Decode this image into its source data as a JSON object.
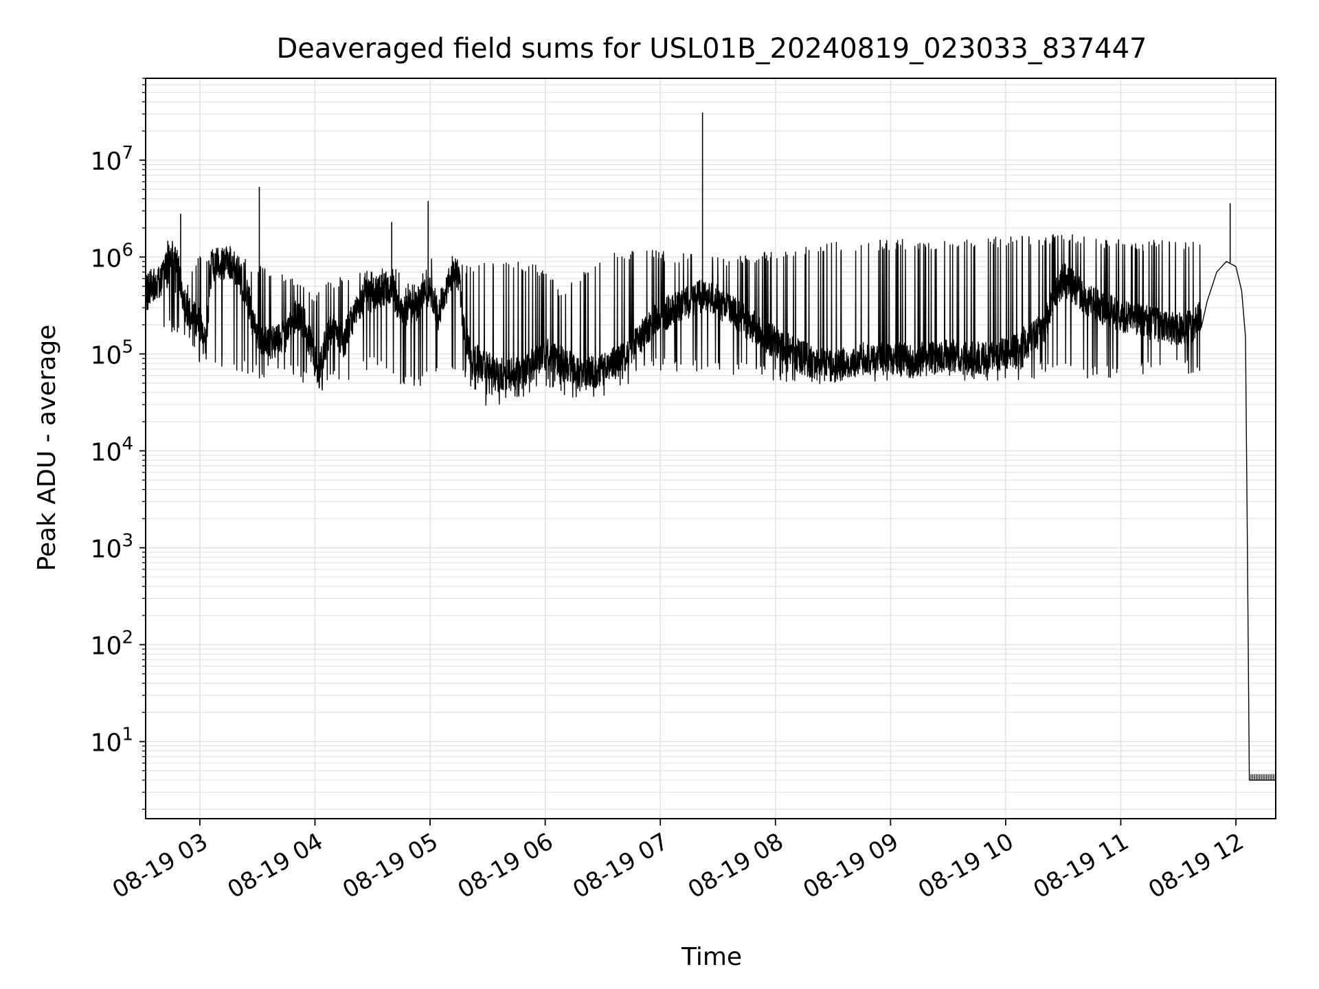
{
  "chart_data": {
    "type": "line",
    "title": "Deaveraged field sums for USL01B_20240819_023033_837447",
    "xlabel": "Time",
    "ylabel": "Peak ADU - average",
    "x_axis_type": "time",
    "y_scale": "log",
    "xlim": [
      "2024-08-19 02:31:45",
      "2024-08-19 12:20:45"
    ],
    "ylim": [
      1.6,
      70000000
    ],
    "x_ticks": [
      {
        "value": "2024-08-19 03:00",
        "label": "08-19 03"
      },
      {
        "value": "2024-08-19 04:00",
        "label": "08-19 04"
      },
      {
        "value": "2024-08-19 05:00",
        "label": "08-19 05"
      },
      {
        "value": "2024-08-19 06:00",
        "label": "08-19 06"
      },
      {
        "value": "2024-08-19 07:00",
        "label": "08-19 07"
      },
      {
        "value": "2024-08-19 08:00",
        "label": "08-19 08"
      },
      {
        "value": "2024-08-19 09:00",
        "label": "08-19 09"
      },
      {
        "value": "2024-08-19 10:00",
        "label": "08-19 10"
      },
      {
        "value": "2024-08-19 11:00",
        "label": "08-19 11"
      },
      {
        "value": "2024-08-19 12:00",
        "label": "08-19 12"
      }
    ],
    "y_ticks": [
      {
        "value": 10,
        "base": "10",
        "exp": "1"
      },
      {
        "value": 100,
        "base": "10",
        "exp": "2"
      },
      {
        "value": 1000,
        "base": "10",
        "exp": "3"
      },
      {
        "value": 10000,
        "base": "10",
        "exp": "4"
      },
      {
        "value": 100000,
        "base": "10",
        "exp": "5"
      },
      {
        "value": 1000000,
        "base": "10",
        "exp": "6"
      },
      {
        "value": 10000000,
        "base": "10",
        "exp": "7"
      }
    ],
    "grid": "major and minor",
    "colors": {
      "line": "#000000",
      "grid": "#e3e3e3",
      "axes": "#000000"
    },
    "series": [
      {
        "style": "dense noisy line",
        "points": [
          [
            "2024-08-19 02:31:45",
            450000
          ],
          [
            "2024-08-19 02:35",
            520000
          ],
          [
            "2024-08-19 02:40",
            560000
          ],
          [
            "2024-08-19 02:44",
            1200000
          ],
          [
            "2024-08-19 02:48",
            900000
          ],
          [
            "2024-08-19 02:52",
            320000
          ],
          [
            "2024-08-19 02:56",
            250000
          ],
          [
            "2024-08-19 03:00",
            200000
          ],
          [
            "2024-08-19 03:03",
            120000
          ],
          [
            "2024-08-19 03:06",
            800000
          ],
          [
            "2024-08-19 03:10",
            850000
          ],
          [
            "2024-08-19 03:15",
            900000
          ],
          [
            "2024-08-19 03:20",
            700000
          ],
          [
            "2024-08-19 03:25",
            400000
          ],
          [
            "2024-08-19 03:28",
            200000
          ],
          [
            "2024-08-19 03:32",
            150000
          ],
          [
            "2024-08-19 03:36",
            130000
          ],
          [
            "2024-08-19 03:40",
            140000
          ],
          [
            "2024-08-19 03:45",
            150000
          ],
          [
            "2024-08-19 03:50",
            250000
          ],
          [
            "2024-08-19 03:55",
            200000
          ],
          [
            "2024-08-19 04:02",
            60000
          ],
          [
            "2024-08-19 04:05",
            120000
          ],
          [
            "2024-08-19 04:10",
            200000
          ],
          [
            "2024-08-19 04:15",
            130000
          ],
          [
            "2024-08-19 04:20",
            250000
          ],
          [
            "2024-08-19 04:25",
            350000
          ],
          [
            "2024-08-19 04:30",
            400000
          ],
          [
            "2024-08-19 04:35",
            450000
          ],
          [
            "2024-08-19 04:40",
            500000
          ],
          [
            "2024-08-19 04:45",
            250000
          ],
          [
            "2024-08-19 04:50",
            300000
          ],
          [
            "2024-08-19 04:55",
            350000
          ],
          [
            "2024-08-19 05:00",
            500000
          ],
          [
            "2024-08-19 05:04",
            250000
          ],
          [
            "2024-08-19 05:08",
            450000
          ],
          [
            "2024-08-19 05:12",
            750000
          ],
          [
            "2024-08-19 05:15",
            650000
          ],
          [
            "2024-08-19 05:18",
            150000
          ],
          [
            "2024-08-19 05:22",
            90000
          ],
          [
            "2024-08-19 05:30",
            70000
          ],
          [
            "2024-08-19 05:40",
            60000
          ],
          [
            "2024-08-19 05:50",
            70000
          ],
          [
            "2024-08-19 06:00",
            100000
          ],
          [
            "2024-08-19 06:10",
            80000
          ],
          [
            "2024-08-19 06:20",
            60000
          ],
          [
            "2024-08-19 06:30",
            70000
          ],
          [
            "2024-08-19 06:40",
            90000
          ],
          [
            "2024-08-19 06:50",
            150000
          ],
          [
            "2024-08-19 07:00",
            250000
          ],
          [
            "2024-08-19 07:10",
            300000
          ],
          [
            "2024-08-19 07:20",
            400000
          ],
          [
            "2024-08-19 07:30",
            350000
          ],
          [
            "2024-08-19 07:40",
            250000
          ],
          [
            "2024-08-19 07:50",
            180000
          ],
          [
            "2024-08-19 08:00",
            130000
          ],
          [
            "2024-08-19 08:10",
            100000
          ],
          [
            "2024-08-19 08:20",
            80000
          ],
          [
            "2024-08-19 08:30",
            75000
          ],
          [
            "2024-08-19 08:40",
            85000
          ],
          [
            "2024-08-19 08:50",
            90000
          ],
          [
            "2024-08-19 09:00",
            90000
          ],
          [
            "2024-08-19 09:10",
            85000
          ],
          [
            "2024-08-19 09:20",
            90000
          ],
          [
            "2024-08-19 09:30",
            95000
          ],
          [
            "2024-08-19 09:40",
            90000
          ],
          [
            "2024-08-19 09:50",
            90000
          ],
          [
            "2024-08-19 10:00",
            100000
          ],
          [
            "2024-08-19 10:10",
            130000
          ],
          [
            "2024-08-19 10:20",
            180000
          ],
          [
            "2024-08-19 10:25",
            400000
          ],
          [
            "2024-08-19 10:30",
            600000
          ],
          [
            "2024-08-19 10:40",
            400000
          ],
          [
            "2024-08-19 10:50",
            300000
          ],
          [
            "2024-08-19 11:00",
            250000
          ],
          [
            "2024-08-19 11:10",
            220000
          ],
          [
            "2024-08-19 11:20",
            200000
          ],
          [
            "2024-08-19 11:30",
            180000
          ],
          [
            "2024-08-19 11:38",
            190000
          ],
          [
            "2024-08-19 11:45",
            350000
          ],
          [
            "2024-08-19 11:50",
            700000
          ],
          [
            "2024-08-19 11:55",
            900000
          ],
          [
            "2024-08-19 12:00",
            800000
          ],
          [
            "2024-08-19 12:03",
            450000
          ],
          [
            "2024-08-19 12:05",
            150000
          ],
          [
            "2024-08-19 12:06",
            1000
          ],
          [
            "2024-08-19 12:07",
            4
          ],
          [
            "2024-08-19 12:20:45",
            4
          ]
        ],
        "upper_envelope": [
          [
            "2024-08-19 02:31:45",
            700000
          ],
          [
            "2024-08-19 02:52",
            400000
          ],
          [
            "2024-08-19 02:57",
            900000
          ],
          [
            "2024-08-19 03:05",
            950000
          ],
          [
            "2024-08-19 03:15",
            1050000
          ],
          [
            "2024-08-19 03:30",
            750000
          ],
          [
            "2024-08-19 03:45",
            600000
          ],
          [
            "2024-08-19 04:00",
            400000
          ],
          [
            "2024-08-19 04:10",
            550000
          ],
          [
            "2024-08-19 04:25",
            650000
          ],
          [
            "2024-08-19 04:40",
            800000
          ],
          [
            "2024-08-19 04:50",
            450000
          ],
          [
            "2024-08-19 05:00",
            1000000
          ],
          [
            "2024-08-19 05:10",
            750000
          ],
          [
            "2024-08-19 05:25",
            800000
          ],
          [
            "2024-08-19 05:40",
            850000
          ],
          [
            "2024-08-19 05:55",
            800000
          ],
          [
            "2024-08-19 06:10",
            400000
          ],
          [
            "2024-08-19 06:20",
            700000
          ],
          [
            "2024-08-19 06:30",
            1000000
          ],
          [
            "2024-08-19 06:50",
            1100000
          ],
          [
            "2024-08-19 07:10",
            1000000
          ],
          [
            "2024-08-19 07:30",
            900000
          ],
          [
            "2024-08-19 07:50",
            1000000
          ],
          [
            "2024-08-19 08:10",
            1200000
          ],
          [
            "2024-08-19 08:30",
            1300000
          ],
          [
            "2024-08-19 08:50",
            1350000
          ],
          [
            "2024-08-19 09:10",
            1400000
          ],
          [
            "2024-08-19 09:30",
            1400000
          ],
          [
            "2024-08-19 09:50",
            1450000
          ],
          [
            "2024-08-19 10:10",
            1500000
          ],
          [
            "2024-08-19 10:30",
            1600000
          ],
          [
            "2024-08-19 10:50",
            1400000
          ],
          [
            "2024-08-19 11:10",
            1350000
          ],
          [
            "2024-08-19 11:30",
            1400000
          ],
          [
            "2024-08-19 11:40",
            1300000
          ]
        ],
        "lower_envelope": [
          [
            "2024-08-19 02:31:45",
            350000
          ],
          [
            "2024-08-19 02:52",
            150000
          ],
          [
            "2024-08-19 03:00",
            90000
          ],
          [
            "2024-08-19 03:15",
            90000
          ],
          [
            "2024-08-19 03:30",
            70000
          ],
          [
            "2024-08-19 03:45",
            80000
          ],
          [
            "2024-08-19 04:00",
            50000
          ],
          [
            "2024-08-19 04:15",
            60000
          ],
          [
            "2024-08-19 04:30",
            90000
          ],
          [
            "2024-08-19 04:45",
            50000
          ],
          [
            "2024-08-19 05:00",
            60000
          ],
          [
            "2024-08-19 05:15",
            70000
          ],
          [
            "2024-08-19 05:30",
            35000
          ],
          [
            "2024-08-19 05:45",
            40000
          ],
          [
            "2024-08-19 06:00",
            50000
          ],
          [
            "2024-08-19 06:15",
            40000
          ],
          [
            "2024-08-19 06:30",
            45000
          ],
          [
            "2024-08-19 06:45",
            55000
          ],
          [
            "2024-08-19 07:00",
            80000
          ],
          [
            "2024-08-19 07:20",
            75000
          ],
          [
            "2024-08-19 07:40",
            70000
          ],
          [
            "2024-08-19 08:00",
            65000
          ],
          [
            "2024-08-19 08:20",
            60000
          ],
          [
            "2024-08-19 08:40",
            65000
          ],
          [
            "2024-08-19 09:00",
            65000
          ],
          [
            "2024-08-19 09:20",
            70000
          ],
          [
            "2024-08-19 09:40",
            65000
          ],
          [
            "2024-08-19 10:00",
            65000
          ],
          [
            "2024-08-19 10:20",
            70000
          ],
          [
            "2024-08-19 10:40",
            70000
          ],
          [
            "2024-08-19 11:00",
            70000
          ],
          [
            "2024-08-19 11:20",
            70000
          ],
          [
            "2024-08-19 11:40",
            80000
          ]
        ],
        "spikes": [
          [
            "2024-08-19 02:50",
            2800000
          ],
          [
            "2024-08-19 03:31",
            5300000
          ],
          [
            "2024-08-19 04:40",
            2300000
          ],
          [
            "2024-08-19 04:59",
            3800000
          ],
          [
            "2024-08-19 07:22",
            31000000
          ],
          [
            "2024-08-19 11:57",
            3600000
          ]
        ]
      }
    ]
  }
}
